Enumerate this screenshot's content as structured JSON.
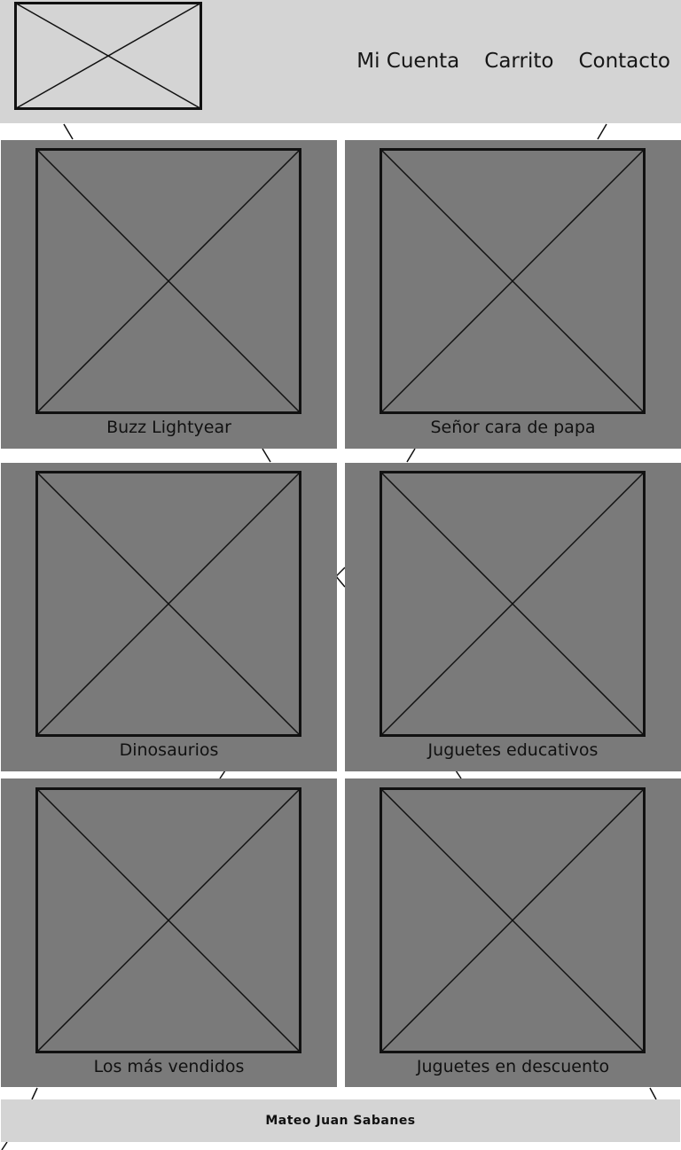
{
  "nav": {
    "items": [
      {
        "label": "Mi Cuenta"
      },
      {
        "label": "Carrito"
      },
      {
        "label": "Contacto"
      }
    ]
  },
  "products": [
    {
      "label": "Buzz Lightyear"
    },
    {
      "label": "Señor cara de papa"
    },
    {
      "label": "Dinosaurios"
    },
    {
      "label": "Juguetes educativos"
    },
    {
      "label": "Los más vendidos"
    },
    {
      "label": "Juguetes en descuento"
    }
  ],
  "footer": {
    "author": "Mateo Juan Sabanes"
  },
  "colors": {
    "header_bg": "#d4d4d4",
    "card_bg": "#7a7a7a",
    "footer_bg": "#d4d4d4",
    "line": "#111111"
  }
}
